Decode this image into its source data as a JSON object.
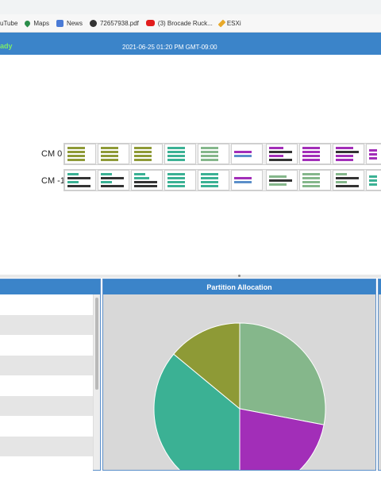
{
  "bookmarks": [
    {
      "label": "uTube",
      "icon": "none"
    },
    {
      "label": "Maps",
      "icon": "maps-pin-icon"
    },
    {
      "label": "News",
      "icon": "news-icon"
    },
    {
      "label": "72657938.pdf",
      "icon": "globe-icon"
    },
    {
      "label": "(3) Brocade Ruck...",
      "icon": "youtube-icon"
    },
    {
      "label": "ESXi",
      "icon": "pencil-icon"
    }
  ],
  "header": {
    "status": "ady",
    "datetime": "2021-06-25 01:20 PM GMT-09:00",
    "status_color": "#7dea6a",
    "bar_color": "#3b84c9"
  },
  "chassis": {
    "rows": [
      {
        "label": "CM 0"
      },
      {
        "label": "CM -1"
      }
    ]
  },
  "panels": {
    "partition": {
      "title": "Partition Allocation"
    }
  },
  "chart_data": {
    "type": "pie",
    "title": "Partition Allocation",
    "slices": [
      {
        "color": "#85b78b",
        "value": 28
      },
      {
        "color": "#a22eb8",
        "value": 22
      },
      {
        "color": "#3bb194",
        "value": 36
      },
      {
        "color": "#8e9a36",
        "value": 14
      }
    ]
  }
}
